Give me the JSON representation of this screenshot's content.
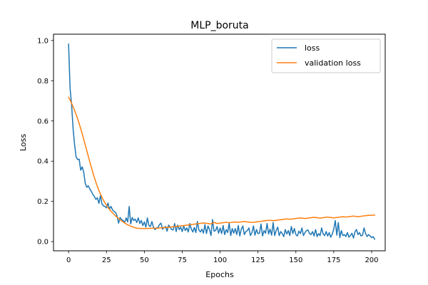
{
  "chart_data": {
    "type": "line",
    "title": "MLP_boruta",
    "xlabel": "Epochs",
    "ylabel": "Loss",
    "xlim": [
      -9.95,
      208.95
    ],
    "ylim": [
      -0.0456,
      1.0313
    ],
    "xticks": [
      0,
      25,
      50,
      75,
      100,
      125,
      150,
      175,
      200
    ],
    "xtick_labels": [
      "0",
      "25",
      "50",
      "75",
      "100",
      "125",
      "150",
      "175",
      "200"
    ],
    "yticks": [
      0.0,
      0.2,
      0.4,
      0.6,
      0.8,
      1.0
    ],
    "ytick_labels": [
      "0.0",
      "0.2",
      "0.4",
      "0.6",
      "0.8",
      "1.0"
    ],
    "grid": false,
    "legend_position": "top-right",
    "series": [
      {
        "name": "loss",
        "color": "#1f77b4",
        "values": [
          0.982,
          0.76,
          0.68,
          0.56,
          0.48,
          0.42,
          0.408,
          0.41,
          0.355,
          0.372,
          0.345,
          0.29,
          0.27,
          0.278,
          0.262,
          0.25,
          0.235,
          0.225,
          0.21,
          0.218,
          0.19,
          0.228,
          0.188,
          0.178,
          0.175,
          0.168,
          0.192,
          0.162,
          0.175,
          0.158,
          0.15,
          0.145,
          0.128,
          0.092,
          0.12,
          0.11,
          0.105,
          0.095,
          0.118,
          0.098,
          0.175,
          0.088,
          0.12,
          0.105,
          0.112,
          0.095,
          0.118,
          0.09,
          0.105,
          0.08,
          0.098,
          0.072,
          0.118,
          0.08,
          0.075,
          0.1,
          0.072,
          0.06,
          0.068,
          0.07,
          0.085,
          0.092,
          0.062,
          0.07,
          0.075,
          0.052,
          0.082,
          0.072,
          0.06,
          0.058,
          0.09,
          0.05,
          0.082,
          0.06,
          0.072,
          0.05,
          0.078,
          0.055,
          0.068,
          0.048,
          0.09,
          0.062,
          0.048,
          0.07,
          0.045,
          0.1,
          0.058,
          0.048,
          0.062,
          0.042,
          0.085,
          0.04,
          0.078,
          0.06,
          0.03,
          0.11,
          0.052,
          0.055,
          0.075,
          0.042,
          0.068,
          0.04,
          0.08,
          0.035,
          0.06,
          0.045,
          0.092,
          0.03,
          0.065,
          0.042,
          0.065,
          0.035,
          0.08,
          0.028,
          0.062,
          0.078,
          0.035,
          0.05,
          0.055,
          0.068,
          0.03,
          0.045,
          0.078,
          0.032,
          0.06,
          0.04,
          0.042,
          0.088,
          0.028,
          0.055,
          0.042,
          0.09,
          0.038,
          0.062,
          0.032,
          0.095,
          0.03,
          0.055,
          0.072,
          0.03,
          0.05,
          0.04,
          0.025,
          0.06,
          0.038,
          0.055,
          0.03,
          0.075,
          0.04,
          0.065,
          0.035,
          0.028,
          0.052,
          0.04,
          0.068,
          0.03,
          0.045,
          0.055,
          0.058,
          0.04,
          0.035,
          0.05,
          0.028,
          0.06,
          0.025,
          0.04,
          0.03,
          0.068,
          0.038,
          0.03,
          0.05,
          0.028,
          0.045,
          0.022,
          0.038,
          0.062,
          0.105,
          0.032,
          0.095,
          0.02,
          0.055,
          0.03,
          0.035,
          0.025,
          0.045,
          0.022,
          0.03,
          0.042,
          0.018,
          0.048,
          0.06,
          0.035,
          0.045,
          0.028,
          0.032,
          0.068,
          0.04,
          0.025,
          0.035,
          0.028,
          0.02,
          0.025,
          0.012
        ]
      },
      {
        "name": "validation loss",
        "color": "#ff7f0e",
        "values": [
          0.718,
          0.703,
          0.688,
          0.67,
          0.652,
          0.631,
          0.61,
          0.587,
          0.562,
          0.536,
          0.508,
          0.481,
          0.453,
          0.425,
          0.397,
          0.37,
          0.344,
          0.319,
          0.296,
          0.274,
          0.254,
          0.237,
          0.221,
          0.206,
          0.193,
          0.181,
          0.17,
          0.16,
          0.151,
          0.143,
          0.135,
          0.128,
          0.121,
          0.115,
          0.109,
          0.103,
          0.098,
          0.093,
          0.088,
          0.084,
          0.08,
          0.077,
          0.074,
          0.071,
          0.069,
          0.067,
          0.066,
          0.066,
          0.065,
          0.065,
          0.065,
          0.065,
          0.065,
          0.066,
          0.066,
          0.066,
          0.067,
          0.067,
          0.066,
          0.067,
          0.068,
          0.068,
          0.069,
          0.07,
          0.07,
          0.071,
          0.072,
          0.072,
          0.073,
          0.074,
          0.075,
          0.076,
          0.076,
          0.077,
          0.078,
          0.079,
          0.08,
          0.081,
          0.082,
          0.083,
          0.084,
          0.085,
          0.086,
          0.087,
          0.088,
          0.089,
          0.09,
          0.091,
          0.092,
          0.093,
          0.092,
          0.091,
          0.09,
          0.089,
          0.088,
          0.092,
          0.096,
          0.093,
          0.09,
          0.091,
          0.092,
          0.093,
          0.094,
          0.095,
          0.096,
          0.095,
          0.094,
          0.095,
          0.096,
          0.097,
          0.098,
          0.097,
          0.096,
          0.097,
          0.098,
          0.099,
          0.1,
          0.099,
          0.098,
          0.097,
          0.096,
          0.095,
          0.096,
          0.097,
          0.098,
          0.099,
          0.1,
          0.101,
          0.102,
          0.103,
          0.104,
          0.105,
          0.106,
          0.106,
          0.105,
          0.104,
          0.105,
          0.106,
          0.107,
          0.108,
          0.109,
          0.11,
          0.111,
          0.112,
          0.113,
          0.112,
          0.111,
          0.112,
          0.113,
          0.114,
          0.115,
          0.116,
          0.117,
          0.118,
          0.117,
          0.116,
          0.115,
          0.116,
          0.117,
          0.118,
          0.119,
          0.12,
          0.121,
          0.12,
          0.119,
          0.118,
          0.117,
          0.118,
          0.119,
          0.12,
          0.121,
          0.122,
          0.121,
          0.12,
          0.119,
          0.118,
          0.119,
          0.12,
          0.121,
          0.122,
          0.123,
          0.124,
          0.123,
          0.122,
          0.123,
          0.124,
          0.125,
          0.126,
          0.127,
          0.126,
          0.125,
          0.124,
          0.125,
          0.126,
          0.127,
          0.128,
          0.129,
          0.13,
          0.131,
          0.13,
          0.131,
          0.132,
          0.132
        ]
      }
    ]
  }
}
